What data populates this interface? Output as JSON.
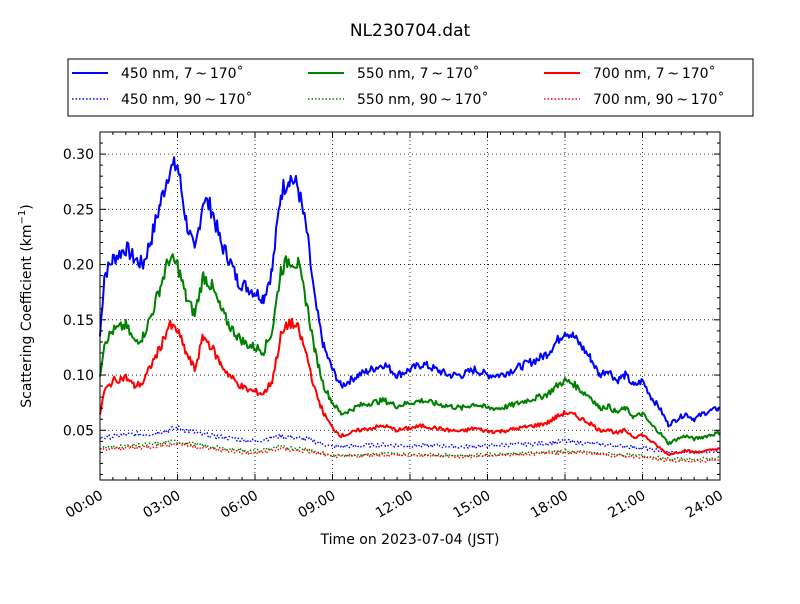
{
  "chart_data": {
    "type": "line",
    "title": "NL230704.dat",
    "xlabel": "Time on 2023-07-04 (JST)",
    "ylabel": "Scattering Coefficient (km",
    "ylabel_sup": "−1",
    "ylabel_close": ")",
    "xlim": [
      "00:00",
      "24:00"
    ],
    "ylim": [
      0.005,
      0.32
    ],
    "x_ticks": [
      "00:00",
      "03:00",
      "06:00",
      "09:00",
      "12:00",
      "15:00",
      "18:00",
      "21:00",
      "24:00"
    ],
    "y_ticks": [
      "0.05",
      "0.10",
      "0.15",
      "0.20",
      "0.25",
      "0.30"
    ],
    "grid": true,
    "legend_position": "top",
    "series": [
      {
        "name": "450 nm, 7 ~ 170˚",
        "color": "#0000ff",
        "style": "solid",
        "points": [
          [
            "00:00",
            0.135
          ],
          [
            "00:10",
            0.19
          ],
          [
            "00:30",
            0.205
          ],
          [
            "01:00",
            0.215
          ],
          [
            "01:20",
            0.205
          ],
          [
            "01:40",
            0.2
          ],
          [
            "02:00",
            0.225
          ],
          [
            "02:20",
            0.255
          ],
          [
            "02:40",
            0.285
          ],
          [
            "03:00",
            0.29
          ],
          [
            "03:20",
            0.24
          ],
          [
            "03:40",
            0.21
          ],
          [
            "04:00",
            0.26
          ],
          [
            "04:20",
            0.25
          ],
          [
            "04:40",
            0.22
          ],
          [
            "05:00",
            0.205
          ],
          [
            "05:20",
            0.185
          ],
          [
            "05:40",
            0.18
          ],
          [
            "06:00",
            0.175
          ],
          [
            "06:20",
            0.17
          ],
          [
            "06:40",
            0.195
          ],
          [
            "07:00",
            0.265
          ],
          [
            "07:20",
            0.28
          ],
          [
            "07:40",
            0.27
          ],
          [
            "08:00",
            0.23
          ],
          [
            "08:20",
            0.165
          ],
          [
            "08:40",
            0.125
          ],
          [
            "09:00",
            0.105
          ],
          [
            "09:20",
            0.09
          ],
          [
            "09:40",
            0.095
          ],
          [
            "10:00",
            0.1
          ],
          [
            "10:30",
            0.105
          ],
          [
            "11:00",
            0.11
          ],
          [
            "11:30",
            0.1
          ],
          [
            "12:00",
            0.105
          ],
          [
            "12:30",
            0.11
          ],
          [
            "13:00",
            0.105
          ],
          [
            "13:30",
            0.1
          ],
          [
            "14:00",
            0.1
          ],
          [
            "14:30",
            0.105
          ],
          [
            "15:00",
            0.1
          ],
          [
            "15:30",
            0.1
          ],
          [
            "16:00",
            0.105
          ],
          [
            "16:30",
            0.11
          ],
          [
            "17:00",
            0.115
          ],
          [
            "17:20",
            0.12
          ],
          [
            "17:40",
            0.13
          ],
          [
            "18:00",
            0.14
          ],
          [
            "18:20",
            0.135
          ],
          [
            "18:40",
            0.125
          ],
          [
            "19:00",
            0.115
          ],
          [
            "19:20",
            0.1
          ],
          [
            "19:40",
            0.105
          ],
          [
            "20:00",
            0.095
          ],
          [
            "20:20",
            0.1
          ],
          [
            "20:40",
            0.09
          ],
          [
            "21:00",
            0.095
          ],
          [
            "21:20",
            0.08
          ],
          [
            "21:40",
            0.07
          ],
          [
            "22:00",
            0.055
          ],
          [
            "22:20",
            0.06
          ],
          [
            "22:40",
            0.065
          ],
          [
            "23:00",
            0.06
          ],
          [
            "23:20",
            0.065
          ],
          [
            "23:40",
            0.068
          ],
          [
            "24:00",
            0.07
          ]
        ]
      },
      {
        "name": "450 nm, 90 ~ 170˚",
        "color": "#0000ff",
        "style": "dotted",
        "points": [
          [
            "00:00",
            0.043
          ],
          [
            "01:00",
            0.046
          ],
          [
            "02:00",
            0.047
          ],
          [
            "03:00",
            0.052
          ],
          [
            "04:00",
            0.046
          ],
          [
            "05:00",
            0.043
          ],
          [
            "06:00",
            0.04
          ],
          [
            "07:00",
            0.045
          ],
          [
            "08:00",
            0.042
          ],
          [
            "09:00",
            0.035
          ],
          [
            "10:00",
            0.036
          ],
          [
            "11:00",
            0.037
          ],
          [
            "12:00",
            0.036
          ],
          [
            "13:00",
            0.036
          ],
          [
            "14:00",
            0.035
          ],
          [
            "15:00",
            0.036
          ],
          [
            "16:00",
            0.037
          ],
          [
            "17:00",
            0.038
          ],
          [
            "18:00",
            0.04
          ],
          [
            "19:00",
            0.038
          ],
          [
            "20:00",
            0.036
          ],
          [
            "21:00",
            0.034
          ],
          [
            "22:00",
            0.03
          ],
          [
            "23:00",
            0.03
          ],
          [
            "24:00",
            0.032
          ]
        ]
      },
      {
        "name": "550 nm, 7 ~ 170˚",
        "color": "#008000",
        "style": "solid",
        "points": [
          [
            "00:00",
            0.1
          ],
          [
            "00:10",
            0.13
          ],
          [
            "00:30",
            0.14
          ],
          [
            "01:00",
            0.145
          ],
          [
            "01:20",
            0.13
          ],
          [
            "01:40",
            0.135
          ],
          [
            "02:00",
            0.155
          ],
          [
            "02:20",
            0.18
          ],
          [
            "02:40",
            0.205
          ],
          [
            "03:00",
            0.2
          ],
          [
            "03:20",
            0.17
          ],
          [
            "03:40",
            0.155
          ],
          [
            "04:00",
            0.19
          ],
          [
            "04:20",
            0.18
          ],
          [
            "04:40",
            0.16
          ],
          [
            "05:00",
            0.145
          ],
          [
            "05:20",
            0.135
          ],
          [
            "05:40",
            0.128
          ],
          [
            "06:00",
            0.125
          ],
          [
            "06:20",
            0.122
          ],
          [
            "06:40",
            0.14
          ],
          [
            "07:00",
            0.195
          ],
          [
            "07:20",
            0.205
          ],
          [
            "07:40",
            0.2
          ],
          [
            "08:00",
            0.165
          ],
          [
            "08:20",
            0.12
          ],
          [
            "08:40",
            0.09
          ],
          [
            "09:00",
            0.075
          ],
          [
            "09:20",
            0.065
          ],
          [
            "09:40",
            0.068
          ],
          [
            "10:00",
            0.072
          ],
          [
            "10:30",
            0.075
          ],
          [
            "11:00",
            0.077
          ],
          [
            "11:30",
            0.072
          ],
          [
            "12:00",
            0.075
          ],
          [
            "12:30",
            0.077
          ],
          [
            "13:00",
            0.074
          ],
          [
            "13:30",
            0.072
          ],
          [
            "14:00",
            0.07
          ],
          [
            "14:30",
            0.074
          ],
          [
            "15:00",
            0.07
          ],
          [
            "15:30",
            0.07
          ],
          [
            "16:00",
            0.073
          ],
          [
            "16:30",
            0.077
          ],
          [
            "17:00",
            0.08
          ],
          [
            "17:20",
            0.083
          ],
          [
            "17:40",
            0.09
          ],
          [
            "18:00",
            0.095
          ],
          [
            "18:20",
            0.092
          ],
          [
            "18:40",
            0.085
          ],
          [
            "19:00",
            0.08
          ],
          [
            "19:20",
            0.07
          ],
          [
            "19:40",
            0.072
          ],
          [
            "20:00",
            0.066
          ],
          [
            "20:20",
            0.07
          ],
          [
            "20:40",
            0.062
          ],
          [
            "21:00",
            0.065
          ],
          [
            "21:20",
            0.055
          ],
          [
            "21:40",
            0.048
          ],
          [
            "22:00",
            0.038
          ],
          [
            "22:20",
            0.042
          ],
          [
            "22:40",
            0.045
          ],
          [
            "23:00",
            0.042
          ],
          [
            "23:20",
            0.044
          ],
          [
            "23:40",
            0.046
          ],
          [
            "24:00",
            0.048
          ]
        ]
      },
      {
        "name": "550 nm, 90 ~ 170˚",
        "color": "#008000",
        "style": "dotted",
        "points": [
          [
            "00:00",
            0.034
          ],
          [
            "01:00",
            0.036
          ],
          [
            "02:00",
            0.037
          ],
          [
            "03:00",
            0.04
          ],
          [
            "04:00",
            0.036
          ],
          [
            "05:00",
            0.033
          ],
          [
            "06:00",
            0.031
          ],
          [
            "07:00",
            0.035
          ],
          [
            "08:00",
            0.033
          ],
          [
            "09:00",
            0.027
          ],
          [
            "10:00",
            0.028
          ],
          [
            "11:00",
            0.029
          ],
          [
            "12:00",
            0.028
          ],
          [
            "13:00",
            0.028
          ],
          [
            "14:00",
            0.027
          ],
          [
            "15:00",
            0.028
          ],
          [
            "16:00",
            0.029
          ],
          [
            "17:00",
            0.03
          ],
          [
            "18:00",
            0.031
          ],
          [
            "19:00",
            0.03
          ],
          [
            "20:00",
            0.028
          ],
          [
            "21:00",
            0.027
          ],
          [
            "22:00",
            0.024
          ],
          [
            "23:00",
            0.024
          ],
          [
            "24:00",
            0.025
          ]
        ]
      },
      {
        "name": "700 nm, 7 ~ 170˚",
        "color": "#ff0000",
        "style": "solid",
        "points": [
          [
            "00:00",
            0.065
          ],
          [
            "00:10",
            0.085
          ],
          [
            "00:30",
            0.095
          ],
          [
            "01:00",
            0.098
          ],
          [
            "01:20",
            0.09
          ],
          [
            "01:40",
            0.093
          ],
          [
            "02:00",
            0.11
          ],
          [
            "02:20",
            0.125
          ],
          [
            "02:40",
            0.145
          ],
          [
            "03:00",
            0.14
          ],
          [
            "03:20",
            0.12
          ],
          [
            "03:40",
            0.105
          ],
          [
            "04:00",
            0.135
          ],
          [
            "04:20",
            0.125
          ],
          [
            "04:40",
            0.11
          ],
          [
            "05:00",
            0.1
          ],
          [
            "05:20",
            0.092
          ],
          [
            "05:40",
            0.087
          ],
          [
            "06:00",
            0.085
          ],
          [
            "06:20",
            0.083
          ],
          [
            "06:40",
            0.095
          ],
          [
            "07:00",
            0.135
          ],
          [
            "07:20",
            0.148
          ],
          [
            "07:40",
            0.142
          ],
          [
            "08:00",
            0.118
          ],
          [
            "08:20",
            0.085
          ],
          [
            "08:40",
            0.065
          ],
          [
            "09:00",
            0.052
          ],
          [
            "09:20",
            0.045
          ],
          [
            "09:40",
            0.047
          ],
          [
            "10:00",
            0.05
          ],
          [
            "10:30",
            0.052
          ],
          [
            "11:00",
            0.054
          ],
          [
            "11:30",
            0.05
          ],
          [
            "12:00",
            0.052
          ],
          [
            "12:30",
            0.054
          ],
          [
            "13:00",
            0.052
          ],
          [
            "13:30",
            0.05
          ],
          [
            "14:00",
            0.049
          ],
          [
            "14:30",
            0.052
          ],
          [
            "15:00",
            0.049
          ],
          [
            "15:30",
            0.049
          ],
          [
            "16:00",
            0.051
          ],
          [
            "16:30",
            0.053
          ],
          [
            "17:00",
            0.055
          ],
          [
            "17:20",
            0.057
          ],
          [
            "17:40",
            0.062
          ],
          [
            "18:00",
            0.066
          ],
          [
            "18:20",
            0.064
          ],
          [
            "18:40",
            0.06
          ],
          [
            "19:00",
            0.056
          ],
          [
            "19:20",
            0.05
          ],
          [
            "19:40",
            0.051
          ],
          [
            "20:00",
            0.047
          ],
          [
            "20:20",
            0.05
          ],
          [
            "20:40",
            0.044
          ],
          [
            "21:00",
            0.046
          ],
          [
            "21:20",
            0.04
          ],
          [
            "21:40",
            0.034
          ],
          [
            "22:00",
            0.028
          ],
          [
            "22:20",
            0.03
          ],
          [
            "22:40",
            0.032
          ],
          [
            "23:00",
            0.03
          ],
          [
            "23:20",
            0.031
          ],
          [
            "23:40",
            0.032
          ],
          [
            "24:00",
            0.034
          ]
        ]
      },
      {
        "name": "700 nm, 90 ~ 170˚",
        "color": "#ff0000",
        "style": "dotted",
        "points": [
          [
            "00:00",
            0.032
          ],
          [
            "01:00",
            0.034
          ],
          [
            "02:00",
            0.035
          ],
          [
            "03:00",
            0.038
          ],
          [
            "04:00",
            0.034
          ],
          [
            "05:00",
            0.031
          ],
          [
            "06:00",
            0.029
          ],
          [
            "07:00",
            0.033
          ],
          [
            "08:00",
            0.031
          ],
          [
            "09:00",
            0.026
          ],
          [
            "10:00",
            0.027
          ],
          [
            "11:00",
            0.028
          ],
          [
            "12:00",
            0.027
          ],
          [
            "13:00",
            0.027
          ],
          [
            "14:00",
            0.026
          ],
          [
            "15:00",
            0.027
          ],
          [
            "16:00",
            0.028
          ],
          [
            "17:00",
            0.029
          ],
          [
            "18:00",
            0.03
          ],
          [
            "19:00",
            0.029
          ],
          [
            "20:00",
            0.027
          ],
          [
            "21:00",
            0.026
          ],
          [
            "22:00",
            0.022
          ],
          [
            "23:00",
            0.022
          ],
          [
            "24:00",
            0.023
          ]
        ]
      }
    ]
  }
}
